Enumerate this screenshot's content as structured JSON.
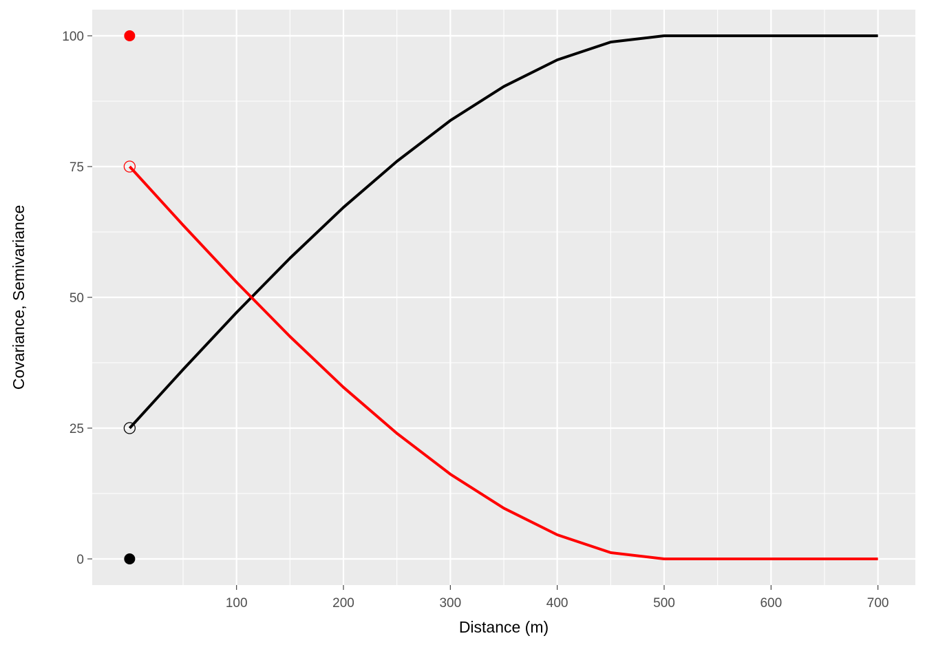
{
  "chart_data": {
    "type": "line",
    "xlabel": "Distance (m)",
    "ylabel": "Covariance, Semivariance",
    "xlim": [
      -35,
      735
    ],
    "ylim": [
      -5,
      105
    ],
    "x_ticks": [
      100,
      200,
      300,
      400,
      500,
      600,
      700
    ],
    "x_tick_labels": [
      "100",
      "200",
      "300",
      "400",
      "500",
      "600",
      "700"
    ],
    "y_ticks": [
      0,
      25,
      50,
      75,
      100
    ],
    "y_tick_labels": [
      "0",
      "25",
      "50",
      "75",
      "100"
    ],
    "grid": true,
    "panel_background": "#ebebeb",
    "series": [
      {
        "color": "#000000",
        "x": [
          0,
          50,
          100,
          150,
          200,
          250,
          300,
          350,
          400,
          450,
          500,
          600,
          700
        ],
        "y": [
          25,
          36.2,
          47.1,
          57.5,
          67.2,
          76.0,
          83.8,
          90.3,
          95.4,
          98.8,
          100,
          100,
          100
        ]
      },
      {
        "color": "#ff0000",
        "x": [
          0,
          50,
          100,
          150,
          200,
          250,
          300,
          350,
          400,
          450,
          500,
          600,
          700
        ],
        "y": [
          75,
          63.8,
          52.9,
          42.5,
          32.8,
          24.0,
          16.2,
          9.7,
          4.6,
          1.2,
          0,
          0,
          0
        ]
      }
    ],
    "points": [
      {
        "x": 0,
        "y": 100,
        "color": "#ff0000",
        "filled": true
      },
      {
        "x": 0,
        "y": 75,
        "color": "#ff0000",
        "filled": false
      },
      {
        "x": 0,
        "y": 25,
        "color": "#000000",
        "filled": false
      },
      {
        "x": 0,
        "y": 0,
        "color": "#000000",
        "filled": true
      }
    ]
  }
}
